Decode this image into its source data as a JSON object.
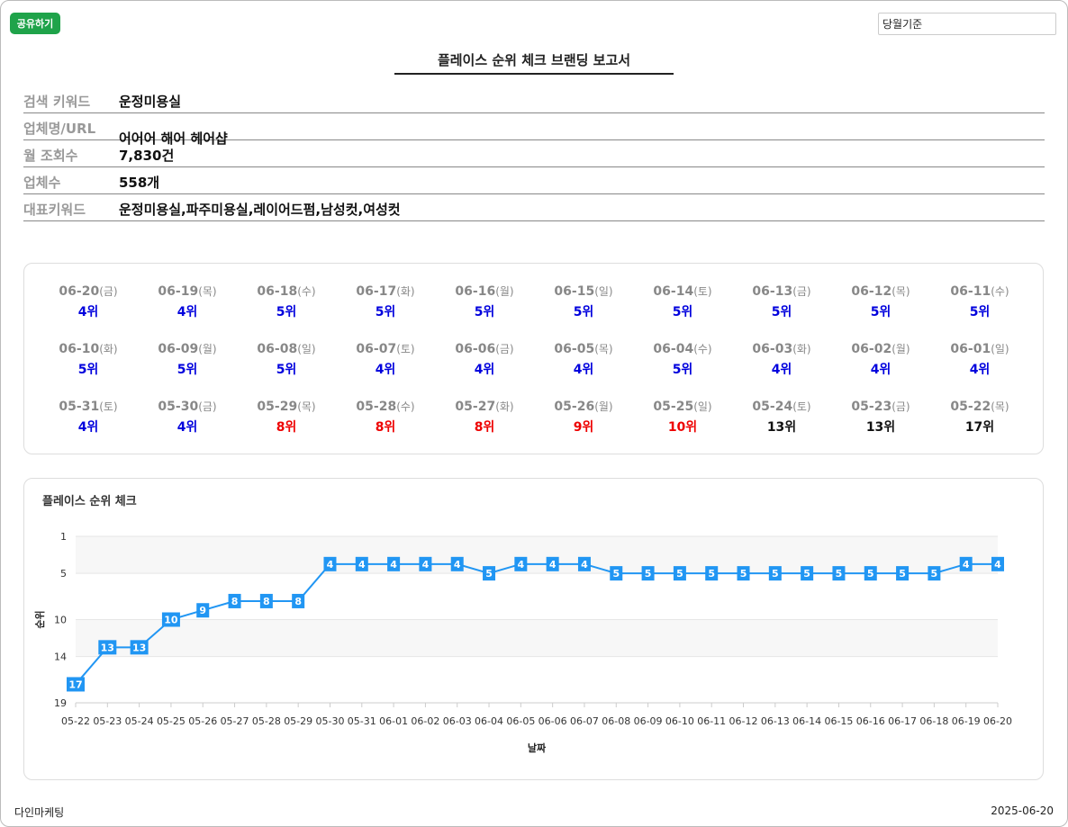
{
  "header": {
    "share_label": "공유하기",
    "period_select": "당월기준",
    "title": "플레이스 순위 체크 브랜딩 보고서"
  },
  "info": [
    {
      "label": "검색 키워드",
      "value": "운정미용실"
    },
    {
      "label": "업체명/URL",
      "value": "어어어 해어 헤어샵"
    },
    {
      "label": "월 조회수",
      "value": "7,830건"
    },
    {
      "label": "업체수",
      "value": "558개"
    },
    {
      "label": "대표키워드",
      "value": "운정미용실,파주미용실,레이어드펌,남성컷,여성컷"
    }
  ],
  "daily_ranks": [
    {
      "date": "06-20",
      "dow": "(금)",
      "rank": "4위",
      "color": "blue"
    },
    {
      "date": "06-19",
      "dow": "(목)",
      "rank": "4위",
      "color": "blue"
    },
    {
      "date": "06-18",
      "dow": "(수)",
      "rank": "5위",
      "color": "blue"
    },
    {
      "date": "06-17",
      "dow": "(화)",
      "rank": "5위",
      "color": "blue"
    },
    {
      "date": "06-16",
      "dow": "(월)",
      "rank": "5위",
      "color": "blue"
    },
    {
      "date": "06-15",
      "dow": "(일)",
      "rank": "5위",
      "color": "blue"
    },
    {
      "date": "06-14",
      "dow": "(토)",
      "rank": "5위",
      "color": "blue"
    },
    {
      "date": "06-13",
      "dow": "(금)",
      "rank": "5위",
      "color": "blue"
    },
    {
      "date": "06-12",
      "dow": "(목)",
      "rank": "5위",
      "color": "blue"
    },
    {
      "date": "06-11",
      "dow": "(수)",
      "rank": "5위",
      "color": "blue"
    },
    {
      "date": "06-10",
      "dow": "(화)",
      "rank": "5위",
      "color": "blue"
    },
    {
      "date": "06-09",
      "dow": "(월)",
      "rank": "5위",
      "color": "blue"
    },
    {
      "date": "06-08",
      "dow": "(일)",
      "rank": "5위",
      "color": "blue"
    },
    {
      "date": "06-07",
      "dow": "(토)",
      "rank": "4위",
      "color": "blue"
    },
    {
      "date": "06-06",
      "dow": "(금)",
      "rank": "4위",
      "color": "blue"
    },
    {
      "date": "06-05",
      "dow": "(목)",
      "rank": "4위",
      "color": "blue"
    },
    {
      "date": "06-04",
      "dow": "(수)",
      "rank": "5위",
      "color": "blue"
    },
    {
      "date": "06-03",
      "dow": "(화)",
      "rank": "4위",
      "color": "blue"
    },
    {
      "date": "06-02",
      "dow": "(월)",
      "rank": "4위",
      "color": "blue"
    },
    {
      "date": "06-01",
      "dow": "(일)",
      "rank": "4위",
      "color": "blue"
    },
    {
      "date": "05-31",
      "dow": "(토)",
      "rank": "4위",
      "color": "blue"
    },
    {
      "date": "05-30",
      "dow": "(금)",
      "rank": "4위",
      "color": "blue"
    },
    {
      "date": "05-29",
      "dow": "(목)",
      "rank": "8위",
      "color": "red"
    },
    {
      "date": "05-28",
      "dow": "(수)",
      "rank": "8위",
      "color": "red"
    },
    {
      "date": "05-27",
      "dow": "(화)",
      "rank": "8위",
      "color": "red"
    },
    {
      "date": "05-26",
      "dow": "(월)",
      "rank": "9위",
      "color": "red"
    },
    {
      "date": "05-25",
      "dow": "(일)",
      "rank": "10위",
      "color": "red"
    },
    {
      "date": "05-24",
      "dow": "(토)",
      "rank": "13위",
      "color": "black"
    },
    {
      "date": "05-23",
      "dow": "(금)",
      "rank": "13위",
      "color": "black"
    },
    {
      "date": "05-22",
      "dow": "(목)",
      "rank": "17위",
      "color": "black"
    }
  ],
  "colors": {
    "blue": "#0000dd",
    "red": "#ee0000",
    "black": "#111111",
    "line": "#2196f3",
    "share": "#1fa34a"
  },
  "chart_data": {
    "type": "line",
    "title": "플레이스 순위 체크",
    "xlabel": "날짜",
    "ylabel": "순위",
    "y_inverted": true,
    "ylim": [
      1,
      19
    ],
    "yticks": [
      1,
      5,
      10,
      14,
      19
    ],
    "grid": true,
    "categories": [
      "05-22",
      "05-23",
      "05-24",
      "05-25",
      "05-26",
      "05-27",
      "05-28",
      "05-29",
      "05-30",
      "05-31",
      "06-01",
      "06-02",
      "06-03",
      "06-04",
      "06-05",
      "06-06",
      "06-07",
      "06-08",
      "06-09",
      "06-10",
      "06-11",
      "06-12",
      "06-13",
      "06-14",
      "06-15",
      "06-16",
      "06-17",
      "06-18",
      "06-19",
      "06-20"
    ],
    "values": [
      17,
      13,
      13,
      10,
      9,
      8,
      8,
      8,
      4,
      4,
      4,
      4,
      4,
      5,
      4,
      4,
      4,
      5,
      5,
      5,
      5,
      5,
      5,
      5,
      5,
      5,
      5,
      5,
      4,
      4
    ]
  },
  "footer": {
    "brand": "다인마케팅",
    "date": "2025-06-20"
  }
}
